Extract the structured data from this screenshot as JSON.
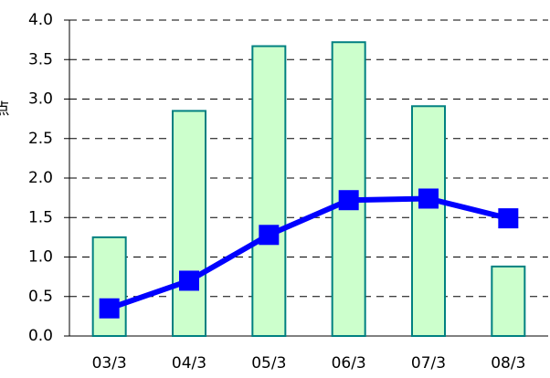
{
  "chart_data": {
    "type": "bar",
    "ylabel": "点",
    "categories": [
      "03/3",
      "04/3",
      "05/3",
      "06/3",
      "07/3",
      "08/3"
    ],
    "series": [
      {
        "type": "bar",
        "color": "#ccffcc",
        "edge_color": "#008080",
        "values": [
          1.25,
          2.85,
          3.67,
          3.72,
          2.91,
          0.88
        ]
      },
      {
        "type": "line",
        "color": "#0000ff",
        "values": [
          0.35,
          0.7,
          1.28,
          1.72,
          1.74,
          1.49
        ]
      }
    ],
    "ylim": [
      0,
      4
    ],
    "yticks": [
      {
        "value": 0,
        "label": "0.0"
      },
      0.5,
      {
        "value": 1,
        "label": "1.0"
      },
      1.5,
      {
        "value": 2,
        "label": "2.0"
      },
      2.5,
      {
        "value": 3,
        "label": "3.0"
      },
      3.5,
      {
        "value": 4,
        "label": "4.0"
      }
    ],
    "grid": true
  }
}
